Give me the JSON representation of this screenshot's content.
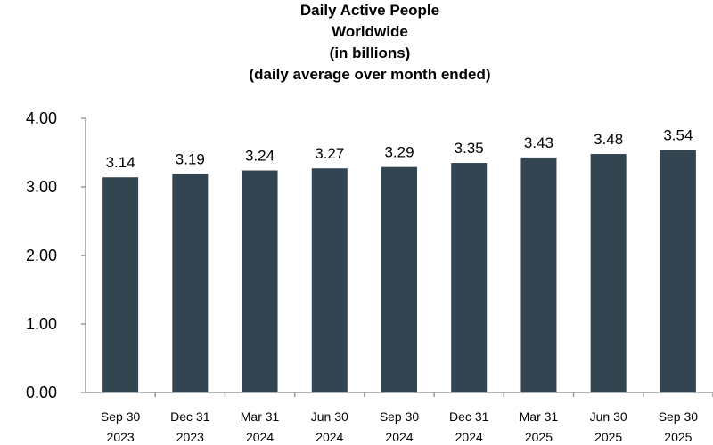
{
  "chart_data": {
    "type": "bar",
    "title_lines": [
      "Daily Active People",
      "Worldwide",
      "(in billions)",
      "(daily average over month ended)"
    ],
    "categories": [
      [
        "Sep 30",
        "2023"
      ],
      [
        "Dec 31",
        "2023"
      ],
      [
        "Mar 31",
        "2024"
      ],
      [
        "Jun 30",
        "2024"
      ],
      [
        "Sep 30",
        "2024"
      ],
      [
        "Dec 31",
        "2024"
      ],
      [
        "Mar 31",
        "2025"
      ],
      [
        "Jun 30",
        "2025"
      ],
      [
        "Sep 30",
        "2025"
      ]
    ],
    "values": [
      3.14,
      3.19,
      3.24,
      3.27,
      3.29,
      3.35,
      3.43,
      3.48,
      3.54
    ],
    "value_labels": [
      "3.14",
      "3.19",
      "3.24",
      "3.27",
      "3.29",
      "3.35",
      "3.43",
      "3.48",
      "3.54"
    ],
    "ylim": [
      0,
      4
    ],
    "yticks": [
      "0.00",
      "1.00",
      "2.00",
      "3.00",
      "4.00"
    ],
    "grid": false,
    "legend": "none",
    "bar_color": "#334551"
  }
}
